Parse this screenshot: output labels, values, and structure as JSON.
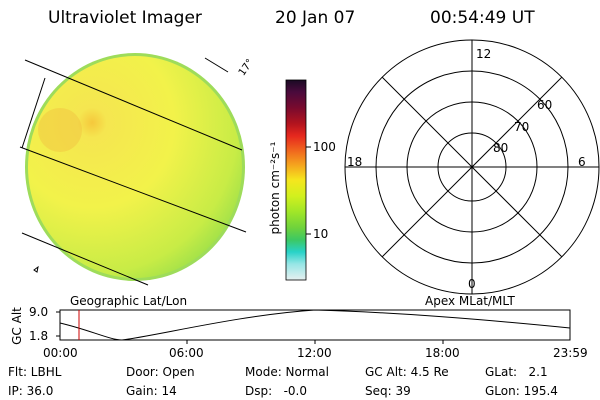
{
  "header": {
    "instrument": "Ultraviolet Imager",
    "date": "20 Jan 07",
    "time": "00:54:49 UT"
  },
  "image_panel": {
    "corner_tag": "17°",
    "colors": {
      "disk_yellow": "#f2f24a",
      "disk_green": "#9fe64a",
      "disk_edge": "#7fd24a"
    }
  },
  "colorbar": {
    "unit_label": "photon cm⁻²s⁻¹",
    "ticks": [
      "100",
      "10"
    ],
    "colors": [
      "#1a0a24",
      "#4a0a3c",
      "#7a0a2e",
      "#b4141e",
      "#e6281e",
      "#f0641e",
      "#f5a01e",
      "#f5e61e",
      "#d2f01e",
      "#a0e628",
      "#6ed23c",
      "#3cc864",
      "#28d2c8",
      "#96e6e6",
      "#e6f0f0"
    ]
  },
  "polar_plot": {
    "clock_labels": {
      "top": "12",
      "left": "18",
      "right": "6",
      "bottom": "0"
    },
    "lat_labels": [
      "60",
      "70",
      "80"
    ]
  },
  "timeline": {
    "left_label": "Geographic Lat/Lon",
    "right_label": "Apex MLat/MLT",
    "ylabel": "GC Alt",
    "ytick_top": "9.0",
    "ytick_bottom": "1.8",
    "xticks": [
      "00:00",
      "06:00",
      "12:00",
      "18:00",
      "23:59"
    ],
    "marker_color": "#cc0000"
  },
  "footer": {
    "flt": "Flt: LBHL",
    "door": "Door: Open",
    "mode": "Mode: Normal",
    "gc_alt": "GC Alt: 4.5 Re",
    "glat": "GLat:   2.1",
    "ip": "IP: 36.0",
    "gain": "Gain: 14",
    "dsp": "Dsp:   -0.0",
    "seq": "Seq: 39",
    "glon": "GLon: 195.4"
  }
}
